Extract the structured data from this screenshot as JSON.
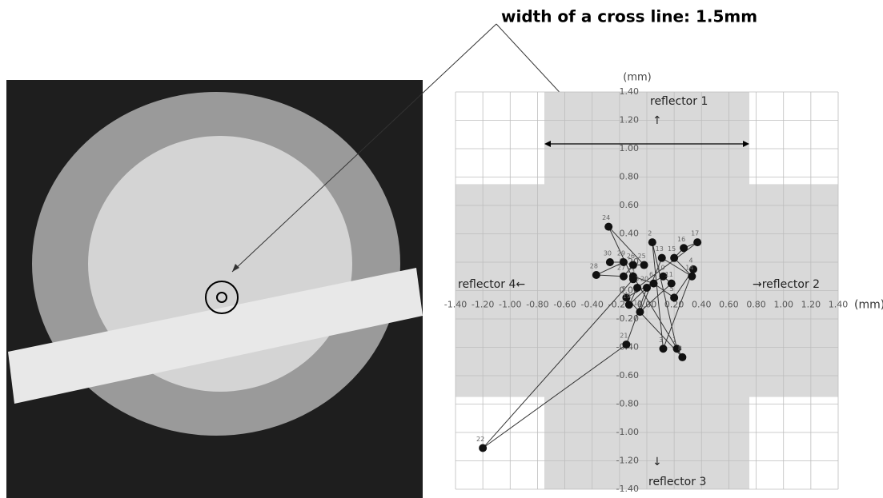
{
  "annotation": "width of a cross line: 1.5mm",
  "chart_data": {
    "type": "scatter-line",
    "y_unit": "(mm)",
    "x_unit": "(mm)",
    "reflectors": {
      "r1": "reflector 1",
      "r1_arrow": "↑",
      "r2": "→reflector 2",
      "r3": "reflector 3",
      "r3_arrow": "↓",
      "r4": "reflector 4←"
    },
    "cross_width": 1.5,
    "xlim": [
      -1.4,
      1.4
    ],
    "ylim": [
      -1.4,
      1.4
    ],
    "xticks": [
      {
        "value": -1.4,
        "label": "-1.40"
      },
      {
        "value": -1.2,
        "label": "-1.20"
      },
      {
        "value": -1,
        "label": "-1.00"
      },
      {
        "value": -0.8,
        "label": "-0.80"
      },
      {
        "value": -0.6,
        "label": "-0.60"
      },
      {
        "value": -0.4,
        "label": "-0.40"
      },
      {
        "value": -0.2,
        "label": "-0.20"
      },
      {
        "value": 0,
        "label": "0.00"
      },
      {
        "value": 0.2,
        "label": "0.20"
      },
      {
        "value": 0.4,
        "label": "0.40"
      },
      {
        "value": 0.6,
        "label": "0.60"
      },
      {
        "value": 0.8,
        "label": "0.80"
      },
      {
        "value": 1,
        "label": "1.00"
      },
      {
        "value": 1.2,
        "label": "1.20"
      },
      {
        "value": 1.4,
        "label": "1.40"
      }
    ],
    "yticks": [
      {
        "value": -1.4,
        "label": "-1.40"
      },
      {
        "value": -1.2,
        "label": "-1.20"
      },
      {
        "value": -1,
        "label": "-1.00"
      },
      {
        "value": -0.8,
        "label": "-0.80"
      },
      {
        "value": -0.6,
        "label": "-0.60"
      },
      {
        "value": -0.4,
        "label": "-0.40"
      },
      {
        "value": -0.2,
        "label": "-0.20"
      },
      {
        "value": 0,
        "label": "0.00"
      },
      {
        "value": 0.2,
        "label": "0.20"
      },
      {
        "value": 0.4,
        "label": "0.40"
      },
      {
        "value": 0.6,
        "label": "0.60"
      },
      {
        "value": 0.8,
        "label": "0.80"
      },
      {
        "value": 1,
        "label": "1.00"
      },
      {
        "value": 1.2,
        "label": "1.20"
      },
      {
        "value": 1.4,
        "label": "1.40"
      }
    ],
    "grid": true,
    "color": "#111111",
    "point_labels": [
      1,
      2,
      3,
      4,
      5,
      6,
      7,
      8,
      9,
      10,
      11,
      12,
      13,
      14,
      15,
      16,
      17,
      18,
      19,
      20,
      21,
      22,
      23,
      24,
      25,
      26,
      27,
      28,
      29,
      30
    ],
    "x": [
      0.22,
      0.04,
      0.12,
      0.34,
      0.2,
      0.05,
      -0.1,
      0.26,
      -0.15,
      0.12,
      0.18,
      -0.05,
      0.11,
      0.33,
      0.2,
      0.27,
      0.37,
      -0.07,
      -0.13,
      0,
      -0.15,
      -1.2,
      -0.1,
      -0.28,
      -0.02,
      -0.1,
      -0.17,
      -0.37,
      -0.17,
      -0.27
    ],
    "values": [
      -0.41,
      0.34,
      -0.41,
      0.15,
      -0.05,
      0.05,
      0.1,
      -0.47,
      -0.05,
      0.1,
      0.05,
      -0.15,
      0.23,
      0.1,
      0.23,
      0.3,
      0.34,
      0.02,
      -0.1,
      0.02,
      -0.38,
      -1.11,
      0.08,
      0.45,
      0.18,
      0.18,
      0.1,
      0.11,
      0.2,
      0.2
    ]
  }
}
